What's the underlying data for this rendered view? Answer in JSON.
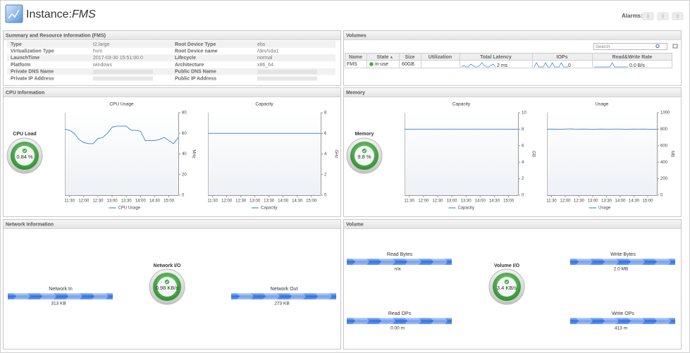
{
  "header": {
    "title": "Instance:",
    "instance": "FMS",
    "alarms_label": "Alarms:",
    "alarms": [
      "0",
      "0",
      "0"
    ]
  },
  "summary": {
    "title": "Summary and Resource Information (FMS)",
    "rows": [
      {
        "left": {
          "label": "Type",
          "value": "t2.large"
        },
        "right": {
          "label": "Root Device Type",
          "value": "ebs"
        }
      },
      {
        "left": {
          "label": "Virtualization Type",
          "value": "hvm"
        },
        "right": {
          "label": "Root Device name",
          "value": "/dev/sda1"
        }
      },
      {
        "left": {
          "label": "LaunchTime",
          "value": "2017-03-30 15:51:00.0"
        },
        "right": {
          "label": "Lifecycle",
          "value": "normal"
        }
      },
      {
        "left": {
          "label": "Platform",
          "value": "windows"
        },
        "right": {
          "label": "Architecture",
          "value": "x86_64"
        }
      },
      {
        "left": {
          "label": "Private DNS Name"
        },
        "right": {
          "label": "Public DNS Name"
        }
      },
      {
        "left": {
          "label": "Private IP Address"
        },
        "right": {
          "label": "Public IP Address"
        }
      }
    ]
  },
  "volumes": {
    "title": "Volumes",
    "search": "Search",
    "columns": [
      "Name",
      "State",
      "Size",
      "Utilization",
      "Total Latency",
      "IOPs",
      "Read&Write Rate"
    ],
    "rows": [
      {
        "name": "FMS",
        "state": "in-use",
        "size": "60GB",
        "latency": "2 ms",
        "iops": "0",
        "rate": "0.0 B/s",
        "latency_spark": [
          3,
          4,
          3,
          3,
          5,
          4,
          3,
          3,
          4,
          6,
          4,
          3,
          3,
          4,
          5,
          3
        ],
        "iops_spark": [
          0,
          1,
          0,
          0,
          0,
          1,
          0,
          0,
          1,
          0,
          0,
          0,
          1,
          0,
          0,
          0
        ],
        "rate_spark": [
          0,
          0,
          0,
          0,
          0,
          0,
          0,
          0,
          3,
          0,
          0,
          0,
          0,
          0,
          0,
          0
        ]
      }
    ]
  },
  "cpu": {
    "title": "CPU Information",
    "gauge": {
      "label": "CPU Load",
      "value": "0.84 %"
    },
    "charts": [
      {
        "type": "line",
        "title": "CPU Usage",
        "y_label": "MHz",
        "categories": [
          null,
          "11:30",
          null,
          null,
          "12:00",
          null,
          null,
          "12:30",
          null,
          null,
          "13:00",
          null,
          null,
          "13:30",
          null,
          null,
          "14:00",
          null,
          null,
          "14:30",
          null,
          null,
          "15:00",
          null,
          null
        ],
        "series": [
          {
            "name": "CPU Usage",
            "color": "#4a8fd6",
            "values": [
              64,
              63,
              60,
              54,
              51,
              50,
              50,
              55,
              56,
              60,
              66,
              67,
              67,
              67,
              63,
              63,
              62,
              53,
              53,
              53,
              54,
              56,
              53,
              50,
              56
            ]
          }
        ],
        "ylim": [
          0,
          80
        ],
        "yticks": [
          0,
          20,
          40,
          60,
          80
        ]
      },
      {
        "type": "line",
        "title": "Capacity",
        "y_label": "GHz",
        "categories": [
          null,
          "11:30",
          null,
          null,
          "12:00",
          null,
          null,
          "12:30",
          null,
          null,
          "13:00",
          null,
          null,
          "13:30",
          null,
          null,
          "14:00",
          null,
          null,
          "14:30",
          null,
          null,
          "15:00",
          null,
          null
        ],
        "series": [
          {
            "name": "Capacity",
            "color": "#4a8fd6",
            "values": [
              6,
              6,
              6,
              6,
              6,
              6,
              6,
              6,
              6,
              6,
              6,
              6,
              6,
              6,
              6,
              6,
              6,
              6,
              6,
              6,
              6,
              6,
              6,
              6,
              6
            ]
          }
        ],
        "ylim": [
          0,
          8
        ],
        "yticks": [
          0,
          2,
          4,
          6,
          8
        ]
      }
    ]
  },
  "memory": {
    "title": "Memory",
    "gauge": {
      "label": "Memory",
      "value": "9.8 %"
    },
    "charts": [
      {
        "type": "line",
        "title": "Capacity",
        "y_label": "GB",
        "categories": [
          null,
          "11:30",
          null,
          null,
          "12:00",
          null,
          null,
          "12:30",
          null,
          null,
          "13:00",
          null,
          null,
          "13:30",
          null,
          null,
          "14:00",
          null,
          null,
          "14:30",
          null,
          null,
          "15:00",
          null,
          null
        ],
        "series": [
          {
            "name": "Capacity",
            "color": "#4a8fd6",
            "values": [
              8,
              8,
              8,
              8,
              8,
              8,
              8,
              8,
              8,
              8,
              8,
              8,
              8,
              8,
              8,
              8,
              8,
              8,
              8,
              8,
              8,
              8,
              8,
              8,
              8
            ]
          }
        ],
        "ylim": [
          0,
          10
        ],
        "yticks": [
          0,
          2,
          4,
          6,
          8,
          10
        ]
      },
      {
        "type": "line",
        "title": "Usage",
        "y_label": "MB",
        "categories": [
          null,
          "11:30",
          null,
          null,
          "12:00",
          null,
          null,
          "12:30",
          null,
          null,
          "13:00",
          null,
          null,
          "13:30",
          null,
          null,
          "14:00",
          null,
          null,
          "14:30",
          null,
          null,
          "15:00",
          null,
          null
        ],
        "series": [
          {
            "name": "Usage",
            "color": "#4a8fd6",
            "values": [
              800,
              801,
              800,
              799,
              802,
              803,
              801,
              800,
              802,
              800,
              799,
              800,
              801,
              800,
              800,
              802,
              801,
              799,
              800,
              801,
              800,
              802,
              800,
              799,
              800
            ]
          }
        ],
        "ylim": [
          0,
          1000
        ],
        "yticks": [
          0,
          200,
          400,
          600,
          800,
          1000
        ]
      }
    ]
  },
  "network": {
    "title": "Network Information",
    "gauge": {
      "label": "Network I/O",
      "value": "0.98 KB/s"
    },
    "in": {
      "label": "Network In",
      "value": "313 KB"
    },
    "out": {
      "label": "Network Out",
      "value": "273 KB"
    }
  },
  "volume": {
    "title": "Volume",
    "gauge": {
      "label": "Volume I/O",
      "value": "3.4 KB/s"
    },
    "read_bytes": {
      "label": "Read Bytes",
      "value": "n/a"
    },
    "read_ops": {
      "label": "Read OPs",
      "value": "0.00 m"
    },
    "write_bytes": {
      "label": "Write Bytes",
      "value": "2.0 MB"
    },
    "write_ops": {
      "label": "Write OPs",
      "value": "413 m"
    }
  }
}
